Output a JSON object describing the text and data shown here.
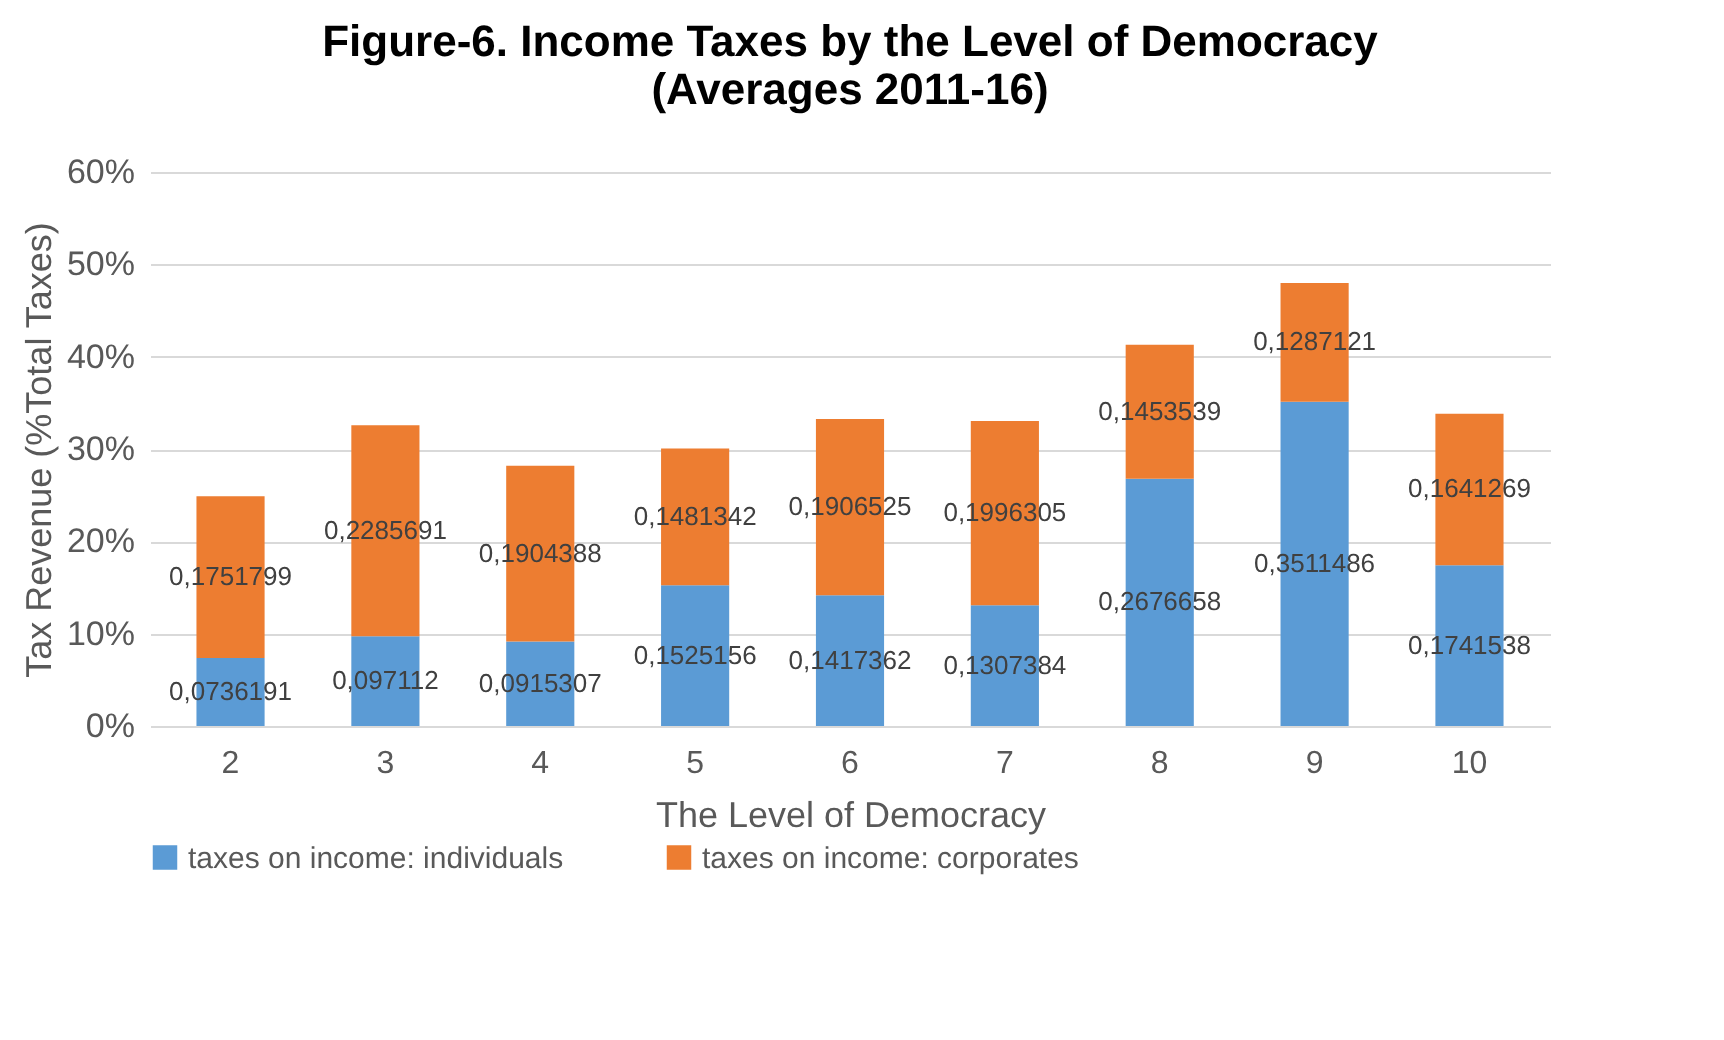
{
  "chart_data": {
    "type": "bar",
    "title": [
      "Figure-6. Income Taxes by the Level of Democracy",
      "(Averages 2011-16)"
    ],
    "xlabel": "The Level of Democracy",
    "ylabel": "Tax Revenue (%Total Taxes)",
    "categories": [
      "2",
      "3",
      "4",
      "5",
      "6",
      "7",
      "8",
      "9",
      "10"
    ],
    "stacked": true,
    "grid": "y",
    "legend": "bottom",
    "ylim": [
      0,
      0.6
    ],
    "yticks": [
      {
        "value": 0,
        "label": "0%"
      },
      {
        "value": 0.1,
        "label": "10%"
      },
      {
        "value": 0.2,
        "label": "20%"
      },
      {
        "value": 0.3,
        "label": "30%"
      },
      {
        "value": 0.4,
        "label": "40%"
      },
      {
        "value": 0.5,
        "label": "50%"
      },
      {
        "value": 0.6,
        "label": "60%"
      }
    ],
    "series": [
      {
        "name": "taxes on income: individuals",
        "color": "#5b9bd5",
        "values": [
          0.0736191,
          0.097112,
          0.0915307,
          0.1525156,
          0.1417362,
          0.1307384,
          0.2676658,
          0.3511486,
          0.1741538
        ],
        "value_labels": [
          "0,0736191",
          "0,097112",
          "0,0915307",
          "0,1525156",
          "0,1417362",
          "0,1307384",
          "0,2676658",
          "0,3511486",
          "0,1741538"
        ]
      },
      {
        "name": "taxes on income: corporates",
        "color": "#ed7d31",
        "values": [
          0.1751799,
          0.2285691,
          0.1904388,
          0.1481342,
          0.1906525,
          0.1996305,
          0.1453539,
          0.1287121,
          0.1641269
        ],
        "value_labels": [
          "0,1751799",
          "0,2285691",
          "0,1904388",
          "0,1481342",
          "0,1906525",
          "0,1996305",
          "0,1453539",
          "0,1287121",
          "0,1641269"
        ]
      }
    ]
  }
}
